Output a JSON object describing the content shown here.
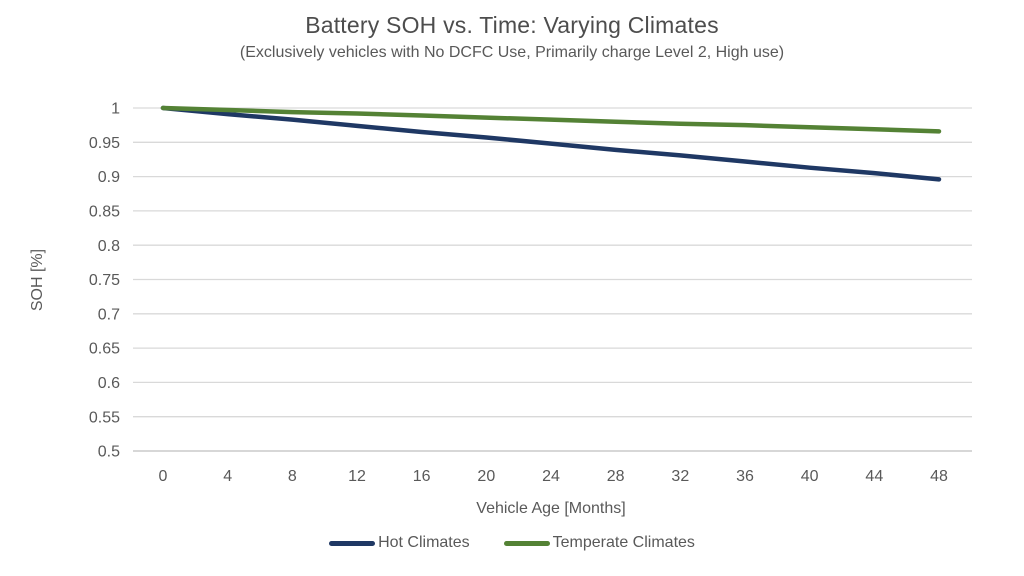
{
  "chart_data": {
    "type": "line",
    "title": "Battery SOH vs. Time: Varying Climates",
    "subtitle": "(Exclusively vehicles with No DCFC Use, Primarily charge Level 2, High use)",
    "xlabel": "Vehicle Age [Months]",
    "ylabel": "SOH [%]",
    "xlim": [
      0,
      48
    ],
    "ylim": [
      0.5,
      1.0
    ],
    "x": [
      0,
      4,
      8,
      12,
      16,
      20,
      24,
      28,
      32,
      36,
      40,
      44,
      48
    ],
    "xtick_labels": [
      "0",
      "4",
      "8",
      "12",
      "16",
      "20",
      "24",
      "28",
      "32",
      "36",
      "40",
      "44",
      "48"
    ],
    "ytick_values": [
      1,
      0.95,
      0.9,
      0.85,
      0.8,
      0.75,
      0.7,
      0.65,
      0.6,
      0.55,
      0.5
    ],
    "ytick_labels": [
      "1",
      "0.95",
      "0.9",
      "0.85",
      "0.8",
      "0.75",
      "0.7",
      "0.65",
      "0.6",
      "0.55",
      "0.5"
    ],
    "grid": "horizontal",
    "legend_position": "bottom",
    "series": [
      {
        "name": "Hot Climates",
        "color": "#1f3864",
        "values": [
          1.0,
          0.991,
          0.983,
          0.974,
          0.965,
          0.957,
          0.948,
          0.939,
          0.931,
          0.922,
          0.913,
          0.905,
          0.896
        ]
      },
      {
        "name": "Temperate Climates",
        "color": "#548235",
        "values": [
          1.0,
          0.997,
          0.994,
          0.992,
          0.989,
          0.986,
          0.983,
          0.98,
          0.977,
          0.975,
          0.972,
          0.969,
          0.966
        ]
      }
    ],
    "colors": {
      "gridline": "#d9d9d9",
      "axis_line": "#bfbfbf",
      "text": "#595959"
    }
  }
}
